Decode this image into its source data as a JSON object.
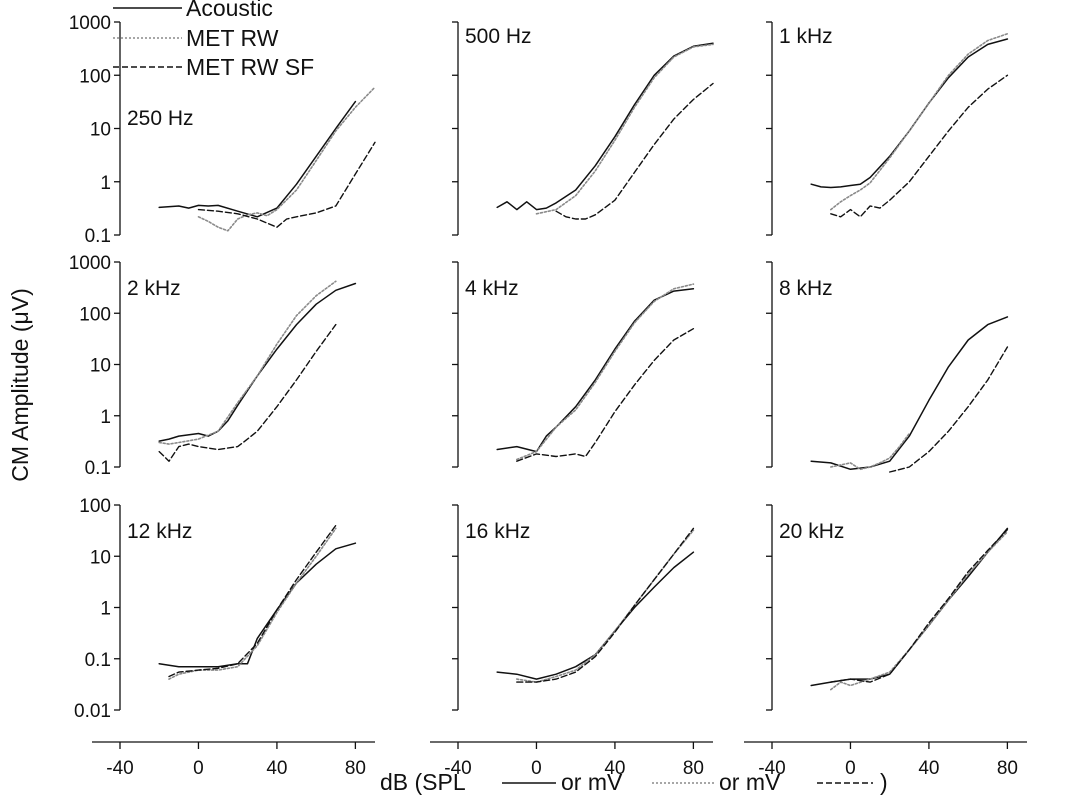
{
  "chart_data": {
    "type": "line",
    "layout": "3x3 small multiples",
    "ylabel": "CM Amplitude (μV)",
    "xlabel": {
      "parts": [
        "dB (SPL",
        "or mV",
        "or mV",
        ")"
      ]
    },
    "x_ticks": [
      "-40",
      "0",
      "40",
      "80"
    ],
    "xlim": [
      -40,
      90
    ],
    "yscale": "log",
    "legend": {
      "placement": "top-left",
      "entries": [
        {
          "label": "Acoustic",
          "style": "solid",
          "color": "#111111"
        },
        {
          "label": "MET RW",
          "style": "dotted",
          "color": "#8a8a8a"
        },
        {
          "label": "MET RW SF",
          "style": "dashed",
          "color": "#111111"
        }
      ]
    },
    "rows": [
      {
        "ylim": [
          0.1,
          1000
        ],
        "y_ticks": [
          "1000",
          "100",
          "10",
          "1",
          "0.1"
        ]
      },
      {
        "ylim": [
          0.1,
          1000
        ],
        "y_ticks": [
          "1000",
          "100",
          "10",
          "1",
          "0.1"
        ]
      },
      {
        "ylim": [
          0.01,
          100
        ],
        "y_ticks": [
          "100",
          "10",
          "1",
          "0.1",
          "0.01"
        ]
      }
    ],
    "panels": [
      {
        "label": "250 Hz",
        "series": [
          {
            "name": "Acoustic",
            "x": [
              -20,
              -10,
              -5,
              0,
              5,
              10,
              20,
              30,
              40,
              50,
              60,
              70,
              80
            ],
            "y": [
              0.33,
              0.35,
              0.32,
              0.36,
              0.35,
              0.36,
              0.28,
              0.22,
              0.32,
              0.9,
              3,
              10,
              32
            ]
          },
          {
            "name": "MET RW",
            "x": [
              0,
              5,
              10,
              15,
              20,
              25,
              30,
              35,
              40,
              50,
              60,
              70,
              80,
              90
            ],
            "y": [
              0.22,
              0.18,
              0.14,
              0.12,
              0.2,
              0.24,
              0.26,
              0.23,
              0.3,
              0.7,
              2.5,
              9,
              25,
              60
            ]
          },
          {
            "name": "MET RW SF",
            "x": [
              0,
              10,
              20,
              30,
              40,
              45,
              50,
              60,
              70,
              80,
              90
            ],
            "y": [
              0.3,
              0.28,
              0.25,
              0.2,
              0.14,
              0.2,
              0.22,
              0.26,
              0.35,
              1.4,
              5.5
            ]
          }
        ]
      },
      {
        "label": "500 Hz",
        "series": [
          {
            "name": "Acoustic",
            "x": [
              -20,
              -15,
              -10,
              -5,
              0,
              5,
              10,
              20,
              30,
              40,
              50,
              60,
              70,
              80,
              90
            ],
            "y": [
              0.33,
              0.42,
              0.3,
              0.42,
              0.3,
              0.32,
              0.4,
              0.7,
              2,
              7,
              28,
              100,
              230,
              350,
              400
            ]
          },
          {
            "name": "MET RW",
            "x": [
              0,
              10,
              20,
              30,
              40,
              50,
              60,
              70,
              80,
              90
            ],
            "y": [
              0.25,
              0.3,
              0.55,
              1.6,
              6,
              25,
              90,
              220,
              340,
              380
            ]
          },
          {
            "name": "MET RW SF",
            "x": [
              10,
              15,
              20,
              25,
              30,
              40,
              50,
              60,
              70,
              80,
              90
            ],
            "y": [
              0.28,
              0.22,
              0.2,
              0.2,
              0.24,
              0.45,
              1.5,
              5,
              15,
              35,
              70
            ]
          }
        ]
      },
      {
        "label": "1 kHz",
        "series": [
          {
            "name": "Acoustic",
            "x": [
              -20,
              -15,
              -10,
              -5,
              0,
              5,
              10,
              20,
              30,
              40,
              50,
              60,
              70,
              80
            ],
            "y": [
              0.9,
              0.8,
              0.78,
              0.8,
              0.85,
              0.9,
              1.2,
              3,
              9,
              30,
              90,
              220,
              380,
              480
            ]
          },
          {
            "name": "MET RW",
            "x": [
              -10,
              -5,
              0,
              5,
              10,
              20,
              30,
              40,
              50,
              60,
              70,
              80
            ],
            "y": [
              0.3,
              0.42,
              0.55,
              0.7,
              0.95,
              2.8,
              9,
              30,
              100,
              250,
              450,
              600
            ]
          },
          {
            "name": "MET RW SF",
            "x": [
              -10,
              -5,
              0,
              5,
              10,
              15,
              20,
              30,
              40,
              50,
              60,
              70,
              80
            ],
            "y": [
              0.25,
              0.22,
              0.3,
              0.22,
              0.35,
              0.32,
              0.45,
              1,
              3,
              9,
              25,
              55,
              100
            ]
          }
        ]
      },
      {
        "label": "2 kHz",
        "series": [
          {
            "name": "Acoustic",
            "x": [
              -20,
              -15,
              -10,
              0,
              5,
              10,
              15,
              20,
              30,
              40,
              50,
              60,
              70,
              80
            ],
            "y": [
              0.32,
              0.35,
              0.4,
              0.45,
              0.4,
              0.5,
              0.8,
              1.6,
              6,
              20,
              60,
              150,
              280,
              380
            ]
          },
          {
            "name": "MET RW",
            "x": [
              -20,
              -15,
              -10,
              0,
              10,
              20,
              30,
              40,
              50,
              60,
              70
            ],
            "y": [
              0.3,
              0.28,
              0.3,
              0.35,
              0.5,
              1.8,
              6,
              25,
              90,
              220,
              420
            ]
          },
          {
            "name": "MET RW SF",
            "x": [
              -20,
              -15,
              -10,
              -5,
              0,
              10,
              20,
              25,
              30,
              40,
              50,
              60,
              70
            ],
            "y": [
              0.2,
              0.13,
              0.25,
              0.28,
              0.25,
              0.22,
              0.25,
              0.35,
              0.5,
              1.5,
              5,
              18,
              60
            ]
          }
        ]
      },
      {
        "label": "4 kHz",
        "series": [
          {
            "name": "Acoustic",
            "x": [
              -20,
              -10,
              0,
              5,
              10,
              20,
              30,
              40,
              50,
              60,
              70,
              80
            ],
            "y": [
              0.22,
              0.25,
              0.2,
              0.4,
              0.6,
              1.5,
              5,
              20,
              70,
              180,
              270,
              300
            ]
          },
          {
            "name": "MET RW",
            "x": [
              -10,
              0,
              10,
              20,
              30,
              40,
              50,
              60,
              70,
              80
            ],
            "y": [
              0.14,
              0.2,
              0.6,
              1.3,
              4.5,
              18,
              65,
              170,
              300,
              370
            ]
          },
          {
            "name": "MET RW SF",
            "x": [
              -10,
              0,
              10,
              20,
              25,
              30,
              40,
              50,
              60,
              70,
              80
            ],
            "y": [
              0.13,
              0.18,
              0.16,
              0.18,
              0.16,
              0.3,
              1.2,
              4,
              12,
              30,
              50
            ]
          }
        ]
      },
      {
        "label": "8 kHz",
        "series": [
          {
            "name": "Acoustic",
            "x": [
              -20,
              -10,
              0,
              10,
              20,
              30,
              40,
              50,
              60,
              70,
              80
            ],
            "y": [
              0.13,
              0.12,
              0.09,
              0.1,
              0.13,
              0.4,
              2,
              9,
              30,
              60,
              85
            ]
          },
          {
            "name": "MET RW",
            "x": [
              -10,
              0,
              5,
              10,
              15,
              20,
              25,
              30
            ],
            "y": [
              0.1,
              0.12,
              0.09,
              0.1,
              0.12,
              0.15,
              0.25,
              0.45
            ]
          },
          {
            "name": "MET RW SF",
            "x": [
              20,
              30,
              40,
              50,
              60,
              70,
              80
            ],
            "y": [
              0.08,
              0.1,
              0.2,
              0.5,
              1.5,
              5,
              22
            ]
          }
        ]
      },
      {
        "label": "12 kHz",
        "series": [
          {
            "name": "Acoustic",
            "x": [
              -20,
              -10,
              0,
              10,
              20,
              25,
              30,
              40,
              50,
              60,
              70,
              80
            ],
            "y": [
              0.08,
              0.07,
              0.07,
              0.07,
              0.08,
              0.08,
              0.25,
              0.9,
              3,
              7,
              14,
              18
            ]
          },
          {
            "name": "MET RW",
            "x": [
              -15,
              -10,
              0,
              10,
              20,
              30,
              40,
              50,
              60,
              70
            ],
            "y": [
              0.04,
              0.05,
              0.06,
              0.06,
              0.07,
              0.18,
              0.8,
              3,
              10,
              35
            ]
          },
          {
            "name": "MET RW SF",
            "x": [
              -15,
              -10,
              0,
              10,
              20,
              30,
              40,
              50,
              60,
              70
            ],
            "y": [
              0.045,
              0.055,
              0.06,
              0.065,
              0.08,
              0.2,
              0.9,
              3.5,
              12,
              40
            ]
          }
        ]
      },
      {
        "label": "16 kHz",
        "series": [
          {
            "name": "Acoustic",
            "x": [
              -20,
              -10,
              0,
              10,
              20,
              30,
              40,
              50,
              60,
              70,
              80
            ],
            "y": [
              0.055,
              0.05,
              0.04,
              0.05,
              0.07,
              0.12,
              0.35,
              1,
              2.5,
              6,
              12
            ]
          },
          {
            "name": "MET RW",
            "x": [
              -10,
              0,
              10,
              20,
              30,
              40,
              50,
              60,
              70,
              80
            ],
            "y": [
              0.04,
              0.035,
              0.045,
              0.06,
              0.12,
              0.35,
              1.1,
              3.5,
              11,
              32
            ]
          },
          {
            "name": "MET RW SF",
            "x": [
              -10,
              0,
              10,
              20,
              30,
              40,
              50,
              60,
              70,
              80
            ],
            "y": [
              0.035,
              0.035,
              0.04,
              0.055,
              0.11,
              0.33,
              1.1,
              3.5,
              11,
              35
            ]
          }
        ]
      },
      {
        "label": "20 kHz",
        "series": [
          {
            "name": "Acoustic",
            "x": [
              -20,
              -10,
              0,
              10,
              20,
              30,
              40,
              50,
              60,
              70,
              80
            ],
            "y": [
              0.03,
              0.035,
              0.04,
              0.04,
              0.05,
              0.15,
              0.45,
              1.4,
              4,
              12,
              35
            ]
          },
          {
            "name": "MET RW",
            "x": [
              -10,
              -5,
              0,
              10,
              20,
              30,
              40,
              50,
              60,
              70,
              80
            ],
            "y": [
              0.025,
              0.035,
              0.03,
              0.04,
              0.055,
              0.15,
              0.45,
              1.4,
              4.5,
              12,
              30
            ]
          },
          {
            "name": "MET RW SF",
            "x": [
              -10,
              0,
              10,
              20,
              30,
              40,
              50,
              60,
              70,
              80
            ],
            "y": [
              0.035,
              0.04,
              0.035,
              0.05,
              0.15,
              0.5,
              1.5,
              5,
              13,
              33
            ]
          }
        ]
      }
    ]
  }
}
